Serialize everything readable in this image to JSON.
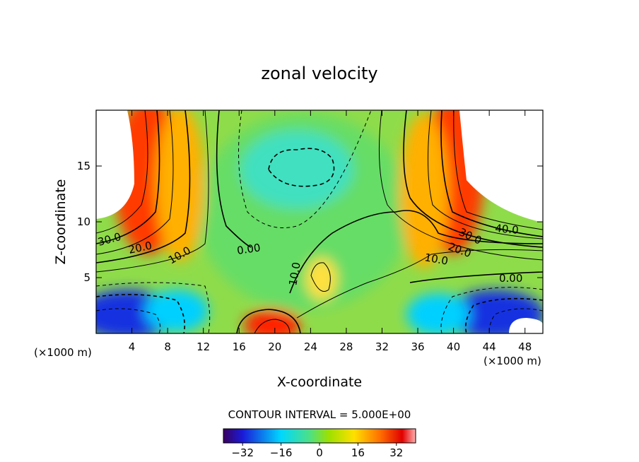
{
  "chart_data": {
    "type": "heatmap",
    "title": "zonal velocity",
    "xlabel": "X-coordinate",
    "ylabel": "Z-coordinate",
    "x_unit": "(×1000 m)",
    "y_unit": "(×1000 m)",
    "xlim": [
      0,
      50
    ],
    "ylim": [
      0,
      20
    ],
    "x_ticks": [
      4,
      8,
      12,
      16,
      20,
      24,
      28,
      32,
      36,
      40,
      44,
      48
    ],
    "y_ticks": [
      5,
      10,
      15
    ],
    "contour_interval_label": "CONTOUR INTERVAL = 5.000E+00",
    "contour_labels": [
      "30.0",
      "20.0",
      "10.0",
      "0.00",
      "10.0",
      "30.0",
      "40.0",
      "20.0",
      "10.0",
      "0.00"
    ],
    "colorbar": {
      "range": [
        -40,
        40
      ],
      "tick_values": [
        -32,
        -16,
        0,
        16,
        32
      ],
      "tick_labels": [
        "−32",
        "−16",
        "0",
        "16",
        "32"
      ]
    },
    "grid": false
  }
}
